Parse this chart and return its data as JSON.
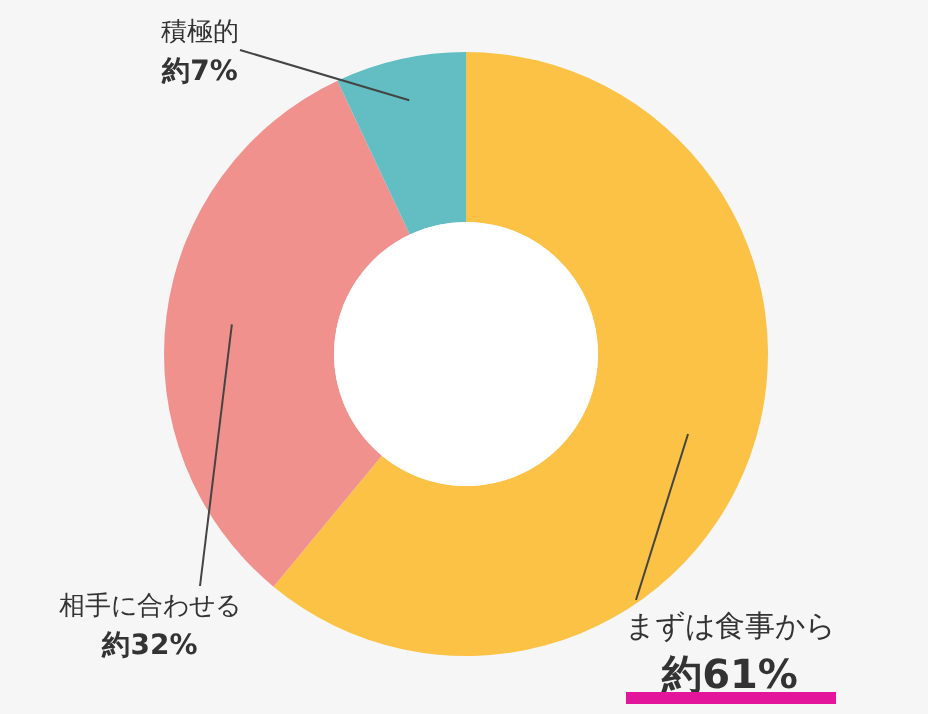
{
  "chart_data": {
    "type": "donut",
    "categories": [
      "まずは食事から",
      "相手に合わせる",
      "積極的"
    ],
    "values": [
      61,
      32,
      7
    ],
    "colors": [
      "#fbc246",
      "#f0918e",
      "#62bec2"
    ],
    "value_labels": [
      "約61%",
      "約32%",
      "約7%"
    ]
  }
}
